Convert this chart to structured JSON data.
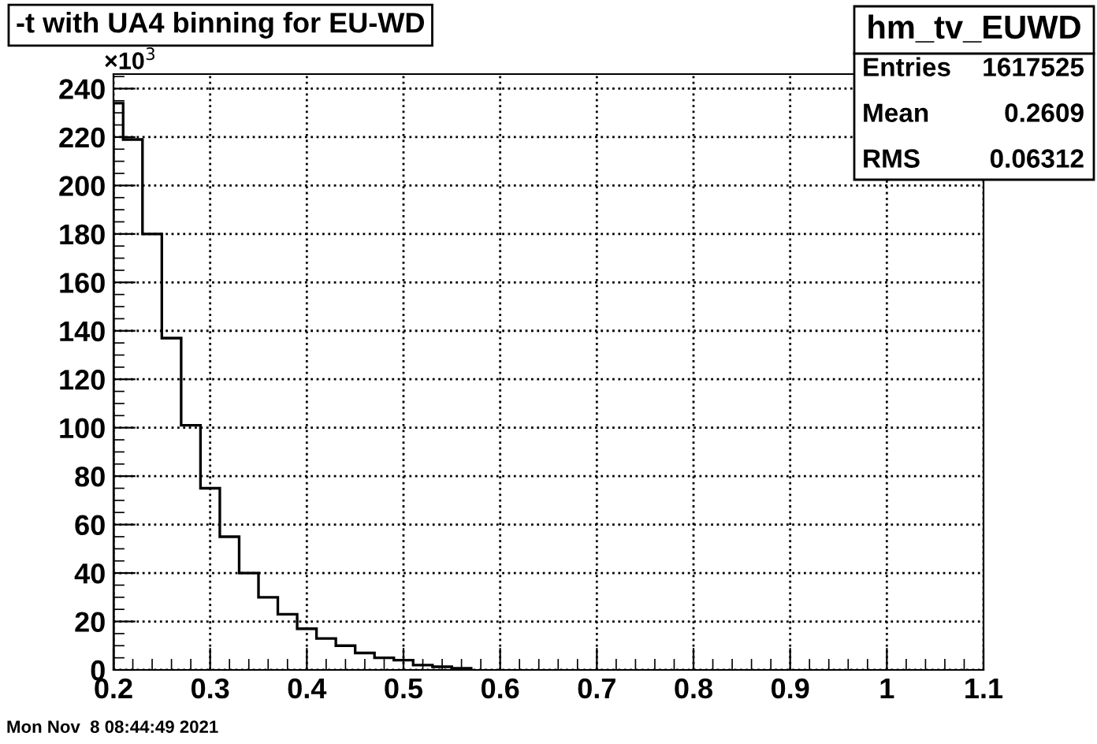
{
  "chart_data": {
    "type": "histogram",
    "title": "-t with UA4 binning for EU-WD",
    "bins": [
      0.2,
      0.21,
      0.23,
      0.25,
      0.27,
      0.29,
      0.31,
      0.33,
      0.35,
      0.37,
      0.39,
      0.41,
      0.43,
      0.45,
      0.47,
      0.49,
      0.51,
      0.53,
      0.55,
      0.57
    ],
    "values": [
      234,
      219,
      180,
      137,
      101,
      75,
      55,
      40,
      30,
      23,
      17,
      13,
      10,
      7,
      5,
      4,
      2,
      1.3,
      0.7
    ],
    "color": "#000000",
    "xlim": [
      0.2,
      1.1
    ],
    "xticks": [
      0.2,
      0.3,
      0.4,
      0.5,
      0.6,
      0.7,
      0.8,
      0.9,
      1,
      1.1
    ],
    "ylim": [
      0,
      246
    ],
    "yticks": [
      0,
      20,
      40,
      60,
      80,
      100,
      120,
      140,
      160,
      180,
      200,
      220,
      240
    ],
    "grid": true,
    "annotations": [
      "×10$^{3}$",
      "hm_tv_EUWD",
      "Entries",
      "1617525",
      "Mean",
      "0.2609",
      "RMS",
      "0.06312",
      "Mon Nov  8 08:44:49 2021"
    ]
  }
}
